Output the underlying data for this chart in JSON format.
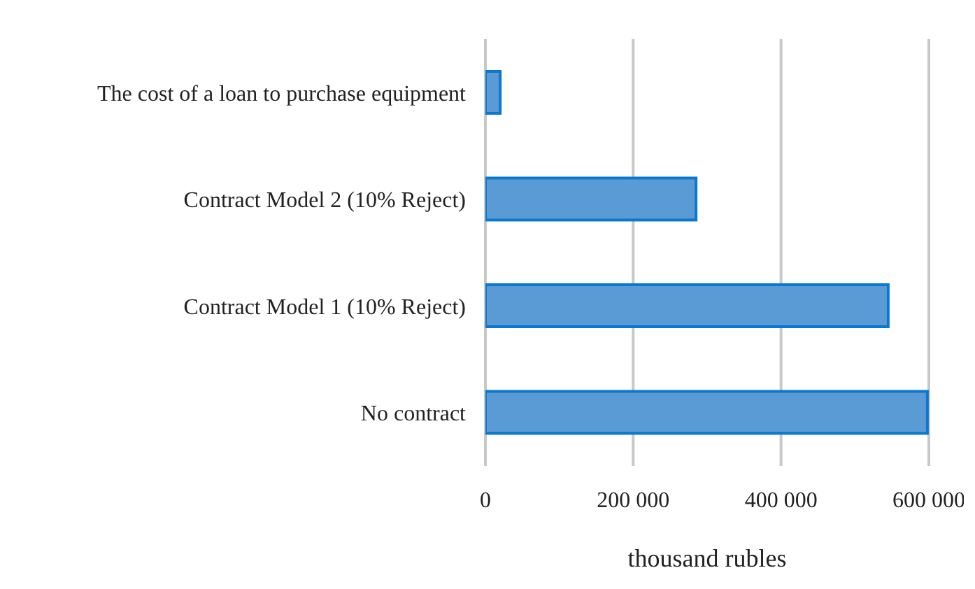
{
  "chart_data": {
    "type": "bar",
    "orientation": "horizontal",
    "xlabel": "thousand rubles",
    "categories": [
      "The cost of a loan to purchase equipment",
      "Contract Model 2 (10% Reject)",
      "Contract Model 1 (10% Reject)",
      "No contract"
    ],
    "values": [
      20000,
      285000,
      545000,
      598000
    ],
    "color": "#5b9bd5",
    "xlim": [
      0,
      600000
    ],
    "xticks": [
      0,
      {
        "value": 200000,
        "label": "200 000"
      },
      {
        "value": 400000,
        "label": "400 000"
      },
      {
        "value": 600000,
        "label": "600 000"
      }
    ],
    "grid": "x"
  }
}
